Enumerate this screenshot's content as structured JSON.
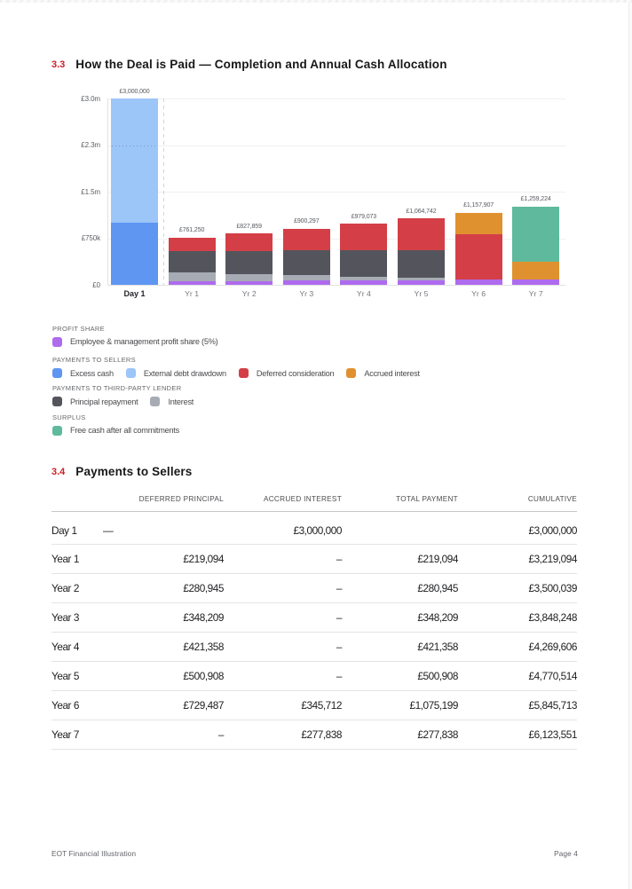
{
  "page": {
    "footer_left": "EOT Financial Illustration",
    "footer_right": "Page 4"
  },
  "section_chart": {
    "number": "3.3",
    "title": "How the Deal is Paid — Completion and Annual Cash Allocation"
  },
  "section_table": {
    "number": "3.4",
    "title": "Payments to Sellers"
  },
  "chart_data": {
    "type": "bar",
    "stacked": true,
    "title": "How the Deal is Paid — Completion and Annual Cash Allocation",
    "categories": [
      "Day 1",
      "Yr 1",
      "Yr 2",
      "Yr 3",
      "Yr 4",
      "Yr 5",
      "Yr 6",
      "Yr 7"
    ],
    "series": [
      {
        "name": "Employee & management profit share (5%)",
        "color": "#ae6bee",
        "values": [
          0,
          54377,
          59135,
          64309,
          69936,
          76055,
          82708,
          89945
        ]
      },
      {
        "name": "Excess cash",
        "color": "#5e96f2",
        "values": [
          1000000,
          0,
          0,
          0,
          0,
          0,
          0,
          0
        ]
      },
      {
        "name": "External debt drawdown",
        "color": "#9cc5f8",
        "values": [
          2000000,
          0,
          0,
          0,
          0,
          0,
          0,
          0
        ]
      },
      {
        "name": "Interest",
        "color": "#a7abb4",
        "values": [
          0,
          140000,
          115655,
          89607,
          61735,
          31912,
          0,
          0
        ]
      },
      {
        "name": "Principal repayment",
        "color": "#54555c",
        "values": [
          0,
          347779,
          372124,
          398172,
          426044,
          455867,
          0,
          0
        ]
      },
      {
        "name": "Deferred consideration",
        "color": "#d43f47",
        "values": [
          0,
          219094,
          280945,
          348209,
          421358,
          500908,
          729487,
          0
        ]
      },
      {
        "name": "Accrued interest",
        "color": "#e0912f",
        "values": [
          0,
          0,
          0,
          0,
          0,
          0,
          345712,
          277838
        ]
      },
      {
        "name": "Free cash after all commitments",
        "color": "#5eb99d",
        "values": [
          0,
          0,
          0,
          0,
          0,
          0,
          0,
          891441
        ]
      }
    ],
    "bar_total_labels": [
      "£3,000,000",
      "£761,250",
      "£827,859",
      "£900,297",
      "£979,073",
      "£1,064,742",
      "£1,157,907",
      "£1,259,224"
    ],
    "y_ticks": [
      "£3.0m",
      "£2.3m",
      "£1.5m",
      "£750k",
      "£0"
    ],
    "ylim": [
      0,
      3000000
    ],
    "grid": true,
    "legend_position": "bottom"
  },
  "legend": {
    "groups": [
      {
        "label": "PROFIT SHARE",
        "items": [
          {
            "name": "Employee & management profit share (5%)",
            "color": "#ae6bee"
          }
        ]
      },
      {
        "label": "PAYMENTS TO SELLERS",
        "items": [
          {
            "name": "Excess cash",
            "color": "#5e96f2"
          },
          {
            "name": "External debt drawdown",
            "color": "#9cc5f8"
          },
          {
            "name": "Deferred consideration",
            "color": "#d43f47"
          },
          {
            "name": "Accrued interest",
            "color": "#e0912f"
          }
        ]
      },
      {
        "label": "PAYMENTS TO THIRD-PARTY LENDER",
        "items": [
          {
            "name": "Principal repayment",
            "color": "#54555c"
          },
          {
            "name": "Interest",
            "color": "#a7abb4"
          }
        ]
      },
      {
        "label": "SURPLUS",
        "items": [
          {
            "name": "Free cash after all commitments",
            "color": "#5eb99d"
          }
        ]
      }
    ]
  },
  "table": {
    "headers": [
      "",
      "DEFERRED PRINCIPAL",
      "ACCRUED INTEREST",
      "TOTAL PAYMENT",
      "CUMULATIVE"
    ],
    "rows": [
      {
        "label": "Day 1",
        "deferred_principal": "—",
        "accrued_interest": "£3,000,000",
        "total_payment": "",
        "cumulative": "£3,000,000",
        "dash_left": true
      },
      {
        "label": "Year 1",
        "deferred_principal": "£219,094",
        "accrued_interest": "–",
        "total_payment": "£219,094",
        "cumulative": "£3,219,094"
      },
      {
        "label": "Year 2",
        "deferred_principal": "£280,945",
        "accrued_interest": "–",
        "total_payment": "£280,945",
        "cumulative": "£3,500,039"
      },
      {
        "label": "Year 3",
        "deferred_principal": "£348,209",
        "accrued_interest": "–",
        "total_payment": "£348,209",
        "cumulative": "£3,848,248"
      },
      {
        "label": "Year 4",
        "deferred_principal": "£421,358",
        "accrued_interest": "–",
        "total_payment": "£421,358",
        "cumulative": "£4,269,606"
      },
      {
        "label": "Year 5",
        "deferred_principal": "£500,908",
        "accrued_interest": "–",
        "total_payment": "£500,908",
        "cumulative": "£4,770,514"
      },
      {
        "label": "Year 6",
        "deferred_principal": "£729,487",
        "accrued_interest": "£345,712",
        "total_payment": "£1,075,199",
        "cumulative": "£5,845,713"
      },
      {
        "label": "Year 7",
        "deferred_principal": "–",
        "accrued_interest": "£277,838",
        "total_payment": "£277,838",
        "cumulative": "£6,123,551"
      }
    ]
  }
}
